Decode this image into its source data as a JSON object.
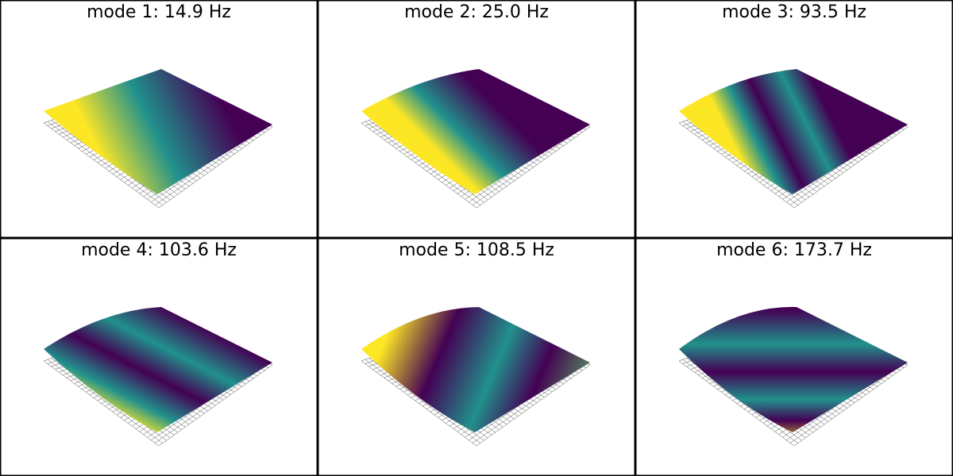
{
  "panels": [
    {
      "title": "mode 1: 14.9 Hz"
    },
    {
      "title": "mode 2: 25.0 Hz"
    },
    {
      "title": "mode 3: 93.5 Hz"
    },
    {
      "title": "mode 4: 103.6 Hz"
    },
    {
      "title": "mode 5: 108.5 Hz"
    },
    {
      "title": "mode 6: 173.7 Hz"
    }
  ]
}
